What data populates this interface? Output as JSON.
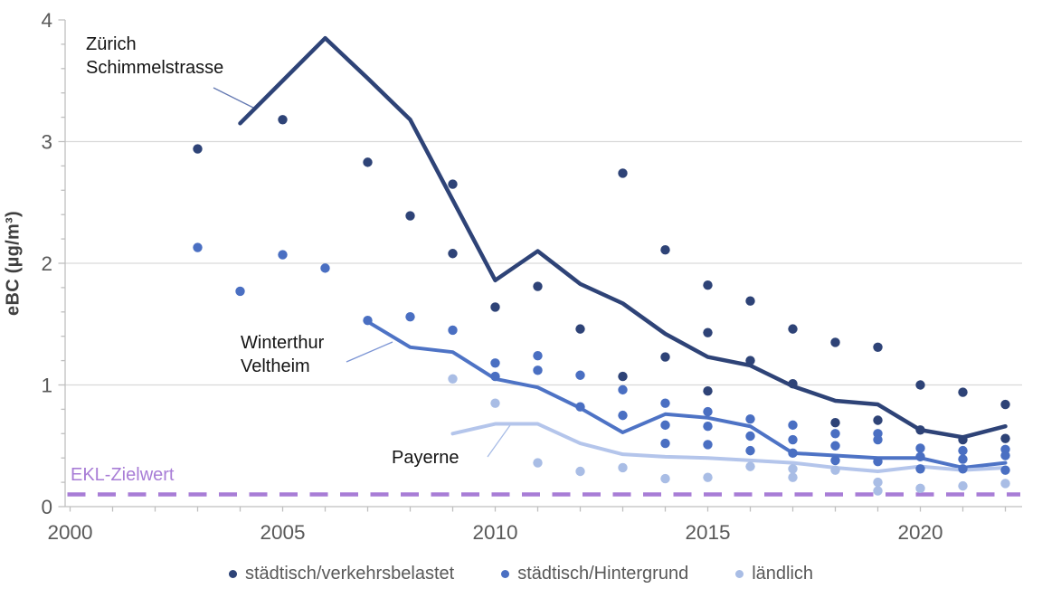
{
  "chart_data": {
    "type": "scatter",
    "title": "",
    "xlabel": "",
    "ylabel": "eBC (µg/m³)",
    "xlim": [
      2000,
      2022.6
    ],
    "ylim": [
      0,
      4
    ],
    "x_ticks": [
      2000,
      2005,
      2010,
      2015,
      2020
    ],
    "x_minor_tick_step": 1,
    "y_ticks": [
      0,
      1,
      2,
      3,
      4
    ],
    "y_minor_tick_step": 0.2,
    "gridlines_y": [
      1,
      2,
      3
    ],
    "grid_color": "#d9d9d9",
    "axis_color": "#bfbfbf",
    "tick_label_color": "#595959",
    "target_line": {
      "label": "EKL-Zielwert",
      "value": 0.1,
      "color": "#A87DD6",
      "style": "dashed"
    },
    "scatter_series": [
      {
        "name": "städtisch/verkehrsbelastet",
        "color": "#2E4377",
        "points": [
          [
            2003,
            2.94
          ],
          [
            2005,
            3.18
          ],
          [
            2007,
            2.83
          ],
          [
            2008,
            2.39
          ],
          [
            2009,
            2.65
          ],
          [
            2009,
            2.08
          ],
          [
            2010,
            1.64
          ],
          [
            2011,
            1.81
          ],
          [
            2012,
            1.46
          ],
          [
            2013,
            2.74
          ],
          [
            2013,
            1.07
          ],
          [
            2014,
            2.11
          ],
          [
            2014,
            1.23
          ],
          [
            2015,
            1.82
          ],
          [
            2015,
            1.43
          ],
          [
            2015,
            0.95
          ],
          [
            2016,
            1.69
          ],
          [
            2016,
            1.2
          ],
          [
            2017,
            1.46
          ],
          [
            2017,
            1.01
          ],
          [
            2018,
            1.35
          ],
          [
            2018,
            0.69
          ],
          [
            2019,
            1.31
          ],
          [
            2019,
            0.71
          ],
          [
            2020,
            1.0
          ],
          [
            2020,
            0.63
          ],
          [
            2021,
            0.94
          ],
          [
            2021,
            0.55
          ],
          [
            2022,
            0.84
          ],
          [
            2022,
            0.56
          ]
        ]
      },
      {
        "name": "städtisch/Hintergrund",
        "color": "#4A6FC2",
        "points": [
          [
            2003,
            2.13
          ],
          [
            2004,
            1.77
          ],
          [
            2005,
            2.07
          ],
          [
            2006,
            1.96
          ],
          [
            2007,
            1.53
          ],
          [
            2008,
            1.56
          ],
          [
            2009,
            1.45
          ],
          [
            2010,
            1.18
          ],
          [
            2010,
            1.07
          ],
          [
            2011,
            1.24
          ],
          [
            2011,
            1.12
          ],
          [
            2012,
            1.08
          ],
          [
            2012,
            0.82
          ],
          [
            2013,
            0.96
          ],
          [
            2013,
            0.75
          ],
          [
            2014,
            0.85
          ],
          [
            2014,
            0.67
          ],
          [
            2014,
            0.52
          ],
          [
            2015,
            0.78
          ],
          [
            2015,
            0.66
          ],
          [
            2015,
            0.51
          ],
          [
            2016,
            0.72
          ],
          [
            2016,
            0.58
          ],
          [
            2016,
            0.46
          ],
          [
            2017,
            0.67
          ],
          [
            2017,
            0.55
          ],
          [
            2017,
            0.44
          ],
          [
            2018,
            0.6
          ],
          [
            2018,
            0.5
          ],
          [
            2018,
            0.38
          ],
          [
            2019,
            0.6
          ],
          [
            2019,
            0.55
          ],
          [
            2019,
            0.37
          ],
          [
            2020,
            0.48
          ],
          [
            2020,
            0.41
          ],
          [
            2020,
            0.31
          ],
          [
            2021,
            0.46
          ],
          [
            2021,
            0.39
          ],
          [
            2021,
            0.31
          ],
          [
            2022,
            0.47
          ],
          [
            2022,
            0.42
          ],
          [
            2022,
            0.3
          ]
        ]
      },
      {
        "name": "ländlich",
        "color": "#A9BDE5",
        "points": [
          [
            2009,
            1.05
          ],
          [
            2010,
            0.85
          ],
          [
            2011,
            0.36
          ],
          [
            2012,
            0.29
          ],
          [
            2013,
            0.32
          ],
          [
            2014,
            0.23
          ],
          [
            2015,
            0.24
          ],
          [
            2016,
            0.33
          ],
          [
            2017,
            0.31
          ],
          [
            2017,
            0.24
          ],
          [
            2018,
            0.3
          ],
          [
            2019,
            0.2
          ],
          [
            2019,
            0.13
          ],
          [
            2020,
            0.15
          ],
          [
            2021,
            0.17
          ],
          [
            2022,
            0.19
          ]
        ]
      }
    ],
    "line_series": [
      {
        "name": "Zürich Schimmelstrasse",
        "color": "#2E4377",
        "width": 4.5,
        "points": [
          [
            2004,
            3.15
          ],
          [
            2005,
            3.5
          ],
          [
            2006,
            3.85
          ],
          [
            2007,
            3.52
          ],
          [
            2008,
            3.18
          ],
          [
            2009,
            2.52
          ],
          [
            2010,
            1.86
          ],
          [
            2011,
            2.1
          ],
          [
            2012,
            1.83
          ],
          [
            2013,
            1.67
          ],
          [
            2014,
            1.42
          ],
          [
            2015,
            1.23
          ],
          [
            2016,
            1.16
          ],
          [
            2017,
            0.99
          ],
          [
            2018,
            0.87
          ],
          [
            2019,
            0.84
          ],
          [
            2020,
            0.63
          ],
          [
            2021,
            0.57
          ],
          [
            2022,
            0.66
          ]
        ]
      },
      {
        "name": "Winterthur Veltheim",
        "color": "#4E73C5",
        "width": 4,
        "points": [
          [
            2007,
            1.52
          ],
          [
            2008,
            1.31
          ],
          [
            2009,
            1.27
          ],
          [
            2010,
            1.05
          ],
          [
            2011,
            0.98
          ],
          [
            2012,
            0.81
          ],
          [
            2013,
            0.61
          ],
          [
            2014,
            0.76
          ],
          [
            2015,
            0.73
          ],
          [
            2016,
            0.66
          ],
          [
            2017,
            0.44
          ],
          [
            2018,
            0.42
          ],
          [
            2019,
            0.4
          ],
          [
            2020,
            0.4
          ],
          [
            2021,
            0.32
          ],
          [
            2022,
            0.36
          ]
        ]
      },
      {
        "name": "Payerne",
        "color": "#B4C5EB",
        "width": 4,
        "points": [
          [
            2009,
            0.6
          ],
          [
            2010,
            0.68
          ],
          [
            2011,
            0.68
          ],
          [
            2012,
            0.52
          ],
          [
            2013,
            0.43
          ],
          [
            2014,
            0.41
          ],
          [
            2015,
            0.4
          ],
          [
            2016,
            0.38
          ],
          [
            2017,
            0.36
          ],
          [
            2018,
            0.32
          ],
          [
            2019,
            0.29
          ],
          [
            2020,
            0.33
          ],
          [
            2021,
            0.3
          ],
          [
            2022,
            0.32
          ]
        ]
      }
    ],
    "annotations": {
      "zurich": {
        "lines": [
          "Zürich",
          "Schimmelstrasse"
        ]
      },
      "winterthur": {
        "lines": [
          "Winterthur",
          "Veltheim"
        ]
      },
      "payerne": {
        "lines": [
          "Payerne"
        ]
      }
    },
    "legend_position": "bottom"
  }
}
